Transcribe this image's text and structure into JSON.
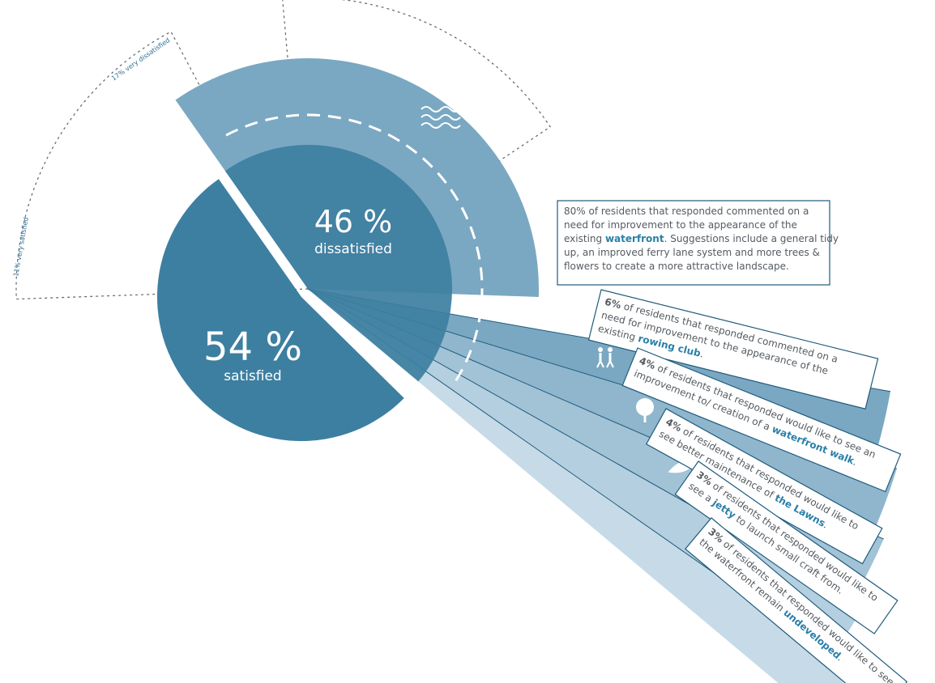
{
  "chart_data": {
    "type": "pie",
    "slices": [
      {
        "label": "satisfied",
        "value": 54,
        "display": "54 %"
      },
      {
        "label": "dissatisfied",
        "value": 46,
        "display": "46 %"
      }
    ],
    "sub_labels": [
      {
        "label": "11% very satisfied",
        "value": 11
      },
      {
        "label": "17% very dissatisfied",
        "value": 17
      }
    ],
    "breakdown": [
      {
        "key": "waterfront",
        "value": 80,
        "icon": "waves-icon",
        "lines": [
          [
            {
              "t": "80% of residents that responded commented on a"
            }
          ],
          [
            {
              "t": "need for improvement to the appearance of the"
            }
          ],
          [
            {
              "t": "existing "
            },
            {
              "t": "waterfront",
              "s": "hl"
            },
            {
              "t": ". Suggestions include a general tidy"
            }
          ],
          [
            {
              "t": "up, an improved ferry lane system and more trees &"
            }
          ],
          [
            {
              "t": "flowers to create a more attractive landscape."
            }
          ]
        ]
      },
      {
        "key": "rowing-club",
        "value": 6,
        "icon": "oars-icon",
        "lines": [
          [
            {
              "t": "6%",
              "s": "b"
            },
            {
              "t": " of residents that responded commented on a"
            }
          ],
          [
            {
              "t": "need for improvement to the appearance of the"
            }
          ],
          [
            {
              "t": "existing "
            },
            {
              "t": "rowing club",
              "s": "hl"
            },
            {
              "t": "."
            }
          ]
        ]
      },
      {
        "key": "waterfront-walk",
        "value": 4,
        "icon": "walkers-icon",
        "lines": [
          [
            {
              "t": "4%",
              "s": "b"
            },
            {
              "t": " of residents that responded would like to see an"
            }
          ],
          [
            {
              "t": "improvement to/ creation of a "
            },
            {
              "t": "waterfront walk",
              "s": "hl"
            },
            {
              "t": "."
            }
          ]
        ]
      },
      {
        "key": "lawns",
        "value": 4,
        "icon": "tree-icon",
        "lines": [
          [
            {
              "t": "4%",
              "s": "b"
            },
            {
              "t": " of residents that responded would like to"
            }
          ],
          [
            {
              "t": "see better maintenance of "
            },
            {
              "t": "the Lawns",
              "s": "hl"
            },
            {
              "t": "."
            }
          ]
        ]
      },
      {
        "key": "jetty",
        "value": 3,
        "icon": "boat-icon",
        "lines": [
          [
            {
              "t": "3%",
              "s": "b"
            },
            {
              "t": " of residents that responded would like to"
            }
          ],
          [
            {
              "t": "see a "
            },
            {
              "t": "jetty",
              "s": "hl"
            },
            {
              "t": " to launch small craft from."
            }
          ]
        ]
      },
      {
        "key": "undeveloped",
        "value": 3,
        "icon": "",
        "lines": [
          [
            {
              "t": "3%",
              "s": "b"
            },
            {
              "t": " of residents that responded would like to see"
            }
          ],
          [
            {
              "t": "the waterfront remain "
            },
            {
              "t": "undeveloped",
              "s": "hl"
            },
            {
              "t": "."
            }
          ]
        ]
      }
    ],
    "colors": {
      "satisfied": "#3d7fa1",
      "inner": "#3d7fa1",
      "dissatisfied_outer": "#7aa8c2",
      "rays": [
        "#7aa8c2",
        "#8fb6cd",
        "#a2c3d6",
        "#b4cfdf",
        "#c6dbe7"
      ],
      "line": "#1f5a7c",
      "label_text": "#555b61",
      "highlight": "#2a7fa7"
    }
  }
}
